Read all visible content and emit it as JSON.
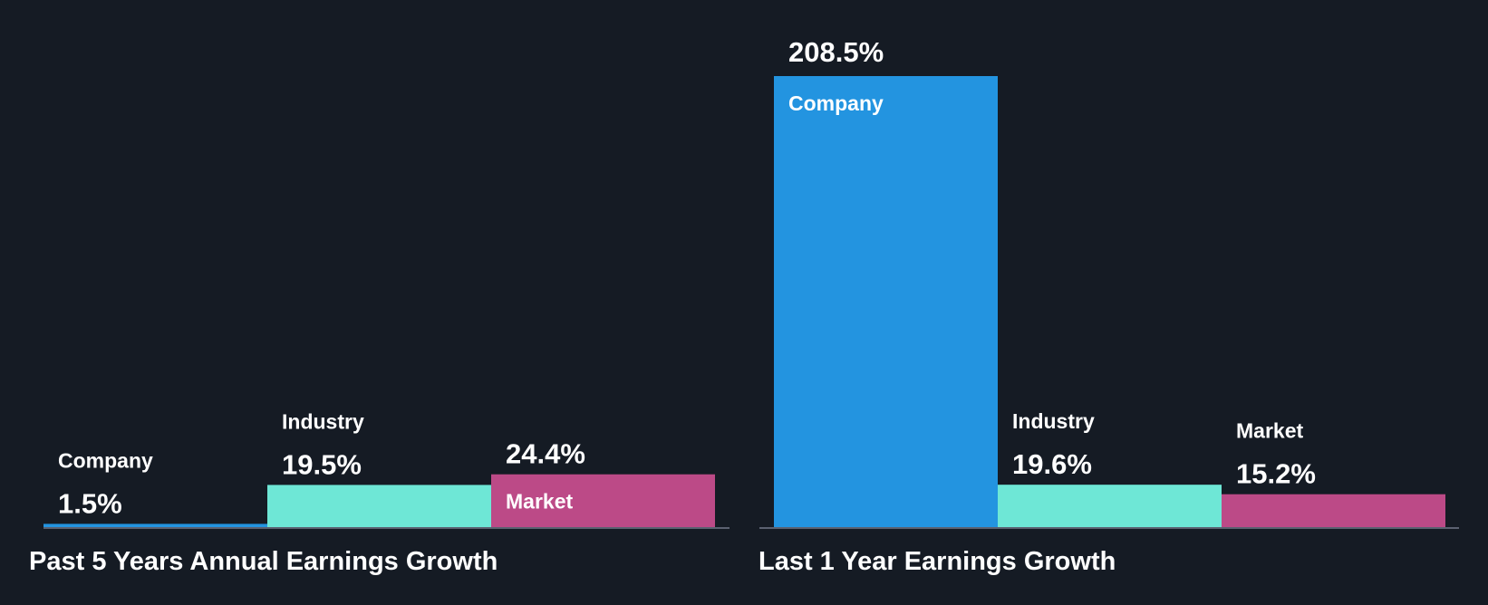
{
  "chart_data": [
    {
      "type": "bar",
      "title": "Past 5 Years Annual Earnings Growth",
      "categories": [
        "Company",
        "Industry",
        "Market"
      ],
      "values": [
        1.5,
        19.5,
        24.4
      ],
      "value_labels": [
        "1.5%",
        "19.5%",
        "24.4%"
      ],
      "colors": [
        "#2394e0",
        "#6ee7d6",
        "#bc4a87"
      ],
      "ylim": [
        0,
        208.5
      ]
    },
    {
      "type": "bar",
      "title": "Last 1 Year Earnings Growth",
      "categories": [
        "Company",
        "Industry",
        "Market"
      ],
      "values": [
        208.5,
        19.6,
        15.2
      ],
      "value_labels": [
        "208.5%",
        "19.6%",
        "15.2%"
      ],
      "colors": [
        "#2394e0",
        "#6ee7d6",
        "#bc4a87"
      ],
      "ylim": [
        0,
        208.5
      ]
    }
  ]
}
